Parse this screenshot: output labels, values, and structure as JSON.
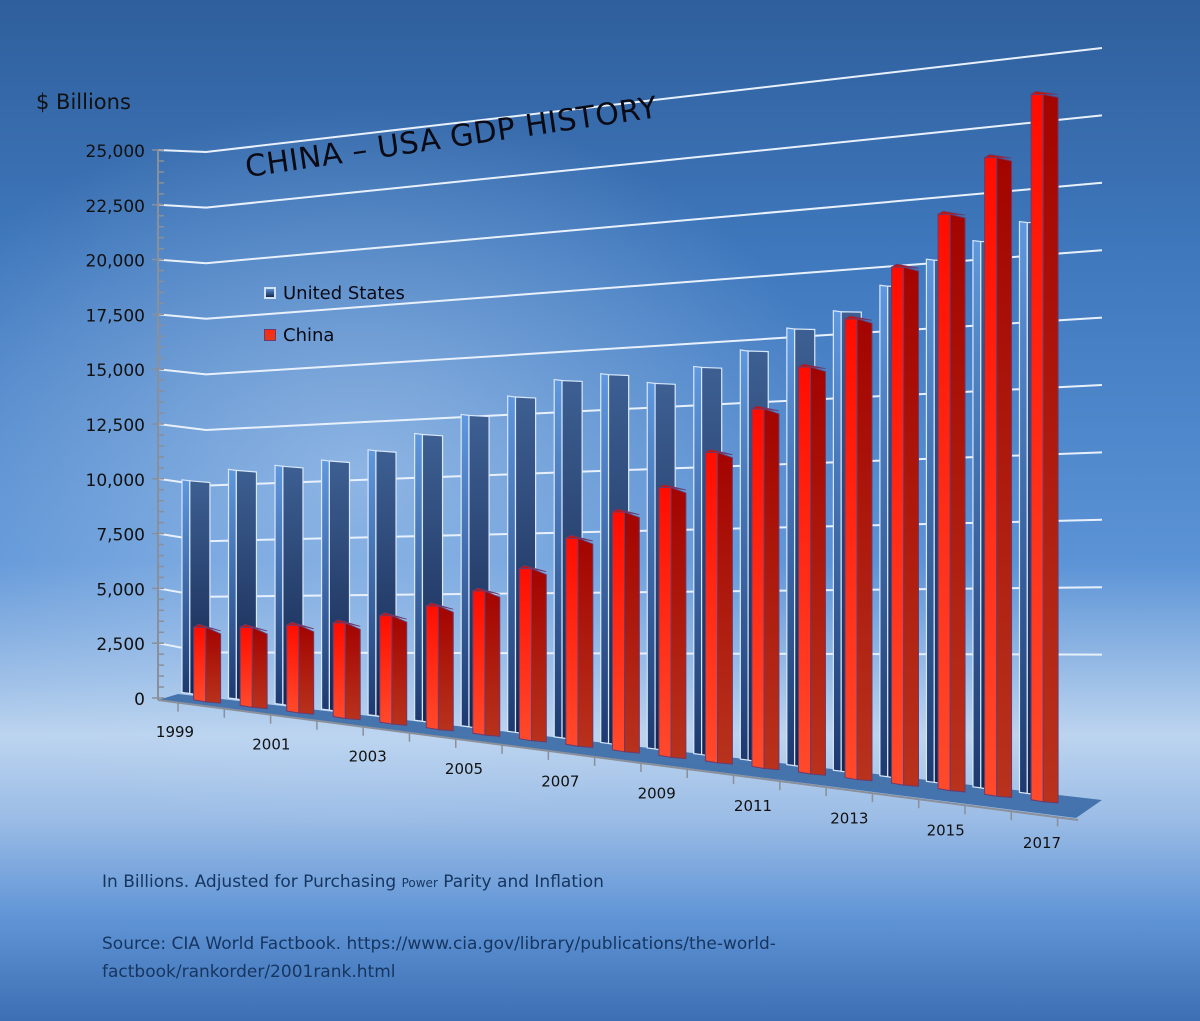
{
  "chart_data": {
    "type": "bar",
    "style": "3d-perspective-clustered-column",
    "title": "CHINA – USA GDP HISTORY",
    "ylabel": "$ Billions",
    "xlabel": "",
    "ylim": [
      0,
      25000
    ],
    "yticks": [
      0,
      2500,
      5000,
      7500,
      10000,
      12500,
      15000,
      17500,
      20000,
      22500,
      25000
    ],
    "ytick_labels": [
      "0",
      "2,500",
      "5,000",
      "7,500",
      "10,000",
      "12,500",
      "15,000",
      "17,500",
      "20,000",
      "22,500",
      "25,000"
    ],
    "categories": [
      "1999",
      "2000",
      "2001",
      "2002",
      "2003",
      "2004",
      "2005",
      "2006",
      "2007",
      "2008",
      "2009",
      "2010",
      "2011",
      "2012",
      "2013",
      "2014",
      "2015",
      "2016",
      "2017"
    ],
    "xtick_labels_shown": [
      "1999",
      "2001",
      "2003",
      "2005",
      "2007",
      "2009",
      "2011",
      "2013",
      "2015",
      "2017"
    ],
    "grid": true,
    "legend_position": "upper-left inside plot",
    "series": [
      {
        "name": "United States",
        "color": "#1f3a6e",
        "values": [
          9600,
          10200,
          10500,
          10850,
          11400,
          12200,
          13100,
          13950,
          14700,
          15000,
          14700,
          15400,
          16100,
          17000,
          17700,
          18700,
          19700,
          20400,
          21100
        ]
      },
      {
        "name": "China",
        "color": "#ff1a0a",
        "values": [
          3300,
          3500,
          3800,
          4100,
          4600,
          5200,
          6000,
          7100,
          8500,
          9700,
          10800,
          12300,
          14100,
          15800,
          17700,
          19700,
          21700,
          23800,
          26100
        ]
      }
    ]
  },
  "labels": {
    "ylabel": "$ Billions",
    "title": "CHINA – USA GDP HISTORY",
    "legend_us": "United States",
    "legend_cn": "China"
  },
  "footnote": {
    "part1": "In Billions. Adjusted for Purchasing ",
    "part2": "Power",
    "part3": " Parity and Inflation"
  },
  "source": "Source: CIA World Factbook. https://www.cia.gov/library/publications/the-world-factbook/rankorder/2001rank.html"
}
